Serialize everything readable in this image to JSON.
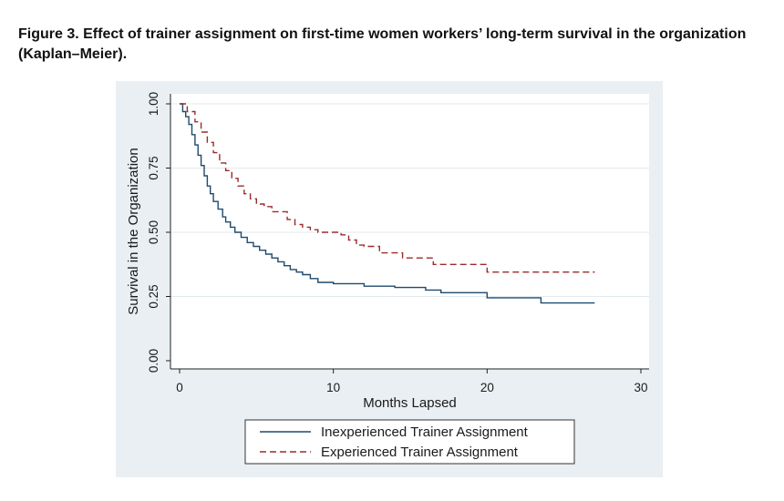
{
  "caption": "Figure 3.  Effect of trainer assignment on first-time women workers’ long-term survival in the organization (Kaplan–Meier).",
  "chart_data": {
    "type": "line",
    "step": true,
    "xlabel": "Months Lapsed",
    "ylabel": "Survival in the Organization",
    "xlim": [
      0,
      30
    ],
    "ylim": [
      0,
      1
    ],
    "xticks": [
      "0",
      "10",
      "20",
      "30"
    ],
    "yticks": [
      "0.00",
      "0.25",
      "0.50",
      "0.75",
      "1.00"
    ],
    "grid": true,
    "legend_position": "bottom",
    "series": [
      {
        "name": "Inexperienced Trainer Assignment",
        "style": "solid",
        "color": "#1f4a6e",
        "x": [
          0,
          0.2,
          0.4,
          0.6,
          0.8,
          1.0,
          1.2,
          1.4,
          1.6,
          1.8,
          2.0,
          2.2,
          2.5,
          2.8,
          3.0,
          3.3,
          3.6,
          4.0,
          4.4,
          4.8,
          5.2,
          5.6,
          6.0,
          6.4,
          6.8,
          7.2,
          7.6,
          8.0,
          8.5,
          9.0,
          10.0,
          12.0,
          14.0,
          16.0,
          17.0,
          20.0,
          22.0,
          23.5,
          27.0
        ],
        "y": [
          1.0,
          0.97,
          0.95,
          0.92,
          0.88,
          0.84,
          0.8,
          0.76,
          0.72,
          0.68,
          0.65,
          0.62,
          0.59,
          0.56,
          0.54,
          0.52,
          0.5,
          0.48,
          0.46,
          0.445,
          0.43,
          0.415,
          0.4,
          0.385,
          0.37,
          0.355,
          0.345,
          0.335,
          0.32,
          0.305,
          0.3,
          0.29,
          0.285,
          0.275,
          0.265,
          0.245,
          0.245,
          0.225,
          0.225
        ]
      },
      {
        "name": "Experienced Trainer Assignment",
        "style": "dashed",
        "color": "#9b2b2b",
        "x": [
          0,
          0.5,
          1.0,
          1.4,
          1.8,
          2.2,
          2.6,
          3.0,
          3.4,
          3.8,
          4.2,
          4.6,
          5.0,
          5.5,
          6.0,
          7.0,
          7.5,
          8.0,
          8.5,
          9.0,
          10.5,
          11.0,
          11.5,
          12.0,
          13.0,
          14.5,
          16.5,
          20.0,
          27.0
        ],
        "y": [
          1.0,
          0.97,
          0.93,
          0.89,
          0.85,
          0.81,
          0.77,
          0.74,
          0.71,
          0.68,
          0.65,
          0.63,
          0.61,
          0.6,
          0.58,
          0.55,
          0.53,
          0.52,
          0.51,
          0.5,
          0.49,
          0.47,
          0.45,
          0.445,
          0.42,
          0.4,
          0.375,
          0.345,
          0.345
        ]
      }
    ]
  }
}
